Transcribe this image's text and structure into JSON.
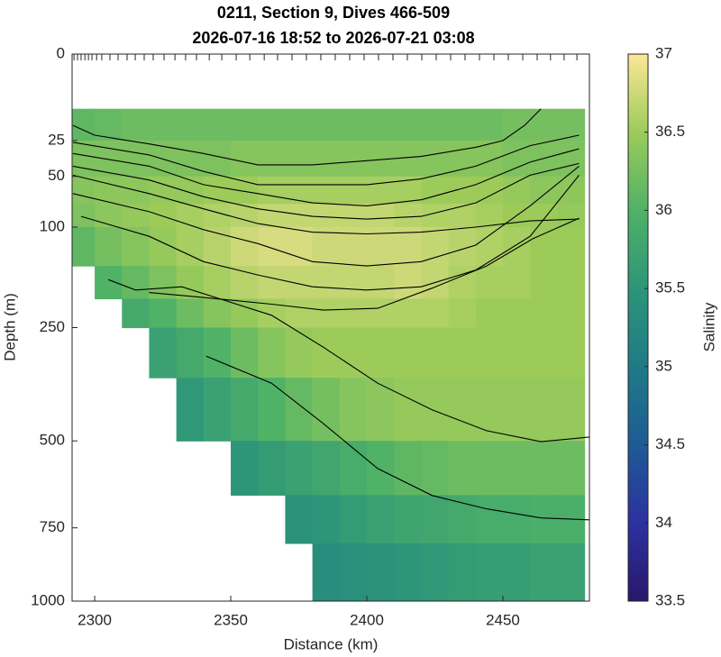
{
  "chart_data": {
    "type": "contour",
    "title": "0211, Section 9, Dives 466-509",
    "subtitle": "2026-07-16 18:52 to 2026-07-21 03:08",
    "x_label": "Distance (km)",
    "y_label": "Depth (m)",
    "colorbar_label": "Salinity",
    "xlim": [
      2291.7,
      2481.8
    ],
    "xticks": [
      2300,
      2350,
      2400,
      2450
    ],
    "ylim": [
      0,
      1000
    ],
    "yticks": [
      0,
      25,
      50,
      100,
      250,
      500,
      750,
      1000
    ],
    "yscale": "sqrt",
    "y_inverted": true,
    "clim": [
      33.5,
      37
    ],
    "cticks": [
      33.5,
      34,
      34.5,
      35,
      35.5,
      36,
      36.5,
      37
    ],
    "colormap": [
      "#29186b",
      "#2c31a0",
      "#1d5b94",
      "#1e7b86",
      "#2d9579",
      "#4fb267",
      "#9dcb5a",
      "#fce797"
    ],
    "dive_ticks_x": [
      2292.4,
      2293.7,
      2295,
      2296.4,
      2297.7,
      2299,
      2300.7,
      2302.6,
      2305.6,
      2308.6,
      2311.9,
      2314.9,
      2318.2,
      2321.5,
      2325.5,
      2329.5,
      2333.4,
      2337.4,
      2342.1,
      2346.7,
      2352,
      2357,
      2362.3,
      2367.2,
      2372.5,
      2377.8,
      2383.1,
      2388.4,
      2393.7,
      2399,
      2404.3,
      2409.6,
      2414.9,
      2420.2,
      2425.5,
      2430.8,
      2436.1,
      2441.4,
      2446.7,
      2452,
      2457.3,
      2462.6,
      2467.5,
      2472.5,
      2477.2
    ],
    "x_edges": [
      2290,
      2300,
      2310,
      2320,
      2330,
      2340,
      2350,
      2360,
      2370,
      2380,
      2390,
      2400,
      2410,
      2420,
      2430,
      2440,
      2450,
      2460,
      2470,
      2480
    ],
    "depth_edges": [
      10,
      25,
      50,
      75,
      100,
      150,
      200,
      250,
      350,
      500,
      650,
      800,
      1000
    ],
    "values": [
      [
        36.1,
        36.15,
        36.2,
        36.2,
        36.2,
        36.2,
        36.2,
        36.2,
        36.2,
        36.2,
        36.2,
        36.2,
        36.2,
        36.2,
        36.2,
        36.2,
        36.25,
        36.25,
        36.25
      ],
      [
        36.3,
        36.3,
        36.3,
        36.3,
        36.3,
        36.3,
        36.35,
        36.35,
        36.35,
        36.35,
        36.35,
        36.35,
        36.35,
        36.35,
        36.35,
        36.35,
        36.3,
        36.3,
        36.3
      ],
      [
        36.35,
        36.4,
        36.4,
        36.45,
        36.45,
        36.5,
        36.5,
        36.55,
        36.55,
        36.55,
        36.55,
        36.55,
        36.55,
        36.5,
        36.5,
        36.5,
        36.45,
        36.4,
        36.4
      ],
      [
        36.3,
        36.4,
        36.45,
        36.5,
        36.55,
        36.6,
        36.65,
        36.7,
        36.7,
        36.7,
        36.7,
        36.7,
        36.65,
        36.6,
        36.6,
        36.55,
        36.5,
        36.5,
        36.45
      ],
      [
        36.1,
        36.25,
        36.35,
        36.45,
        36.55,
        36.65,
        36.75,
        36.8,
        36.8,
        36.75,
        36.75,
        36.75,
        36.75,
        36.7,
        36.65,
        36.6,
        36.55,
        36.5,
        36.5
      ],
      [
        null,
        36.0,
        36.15,
        36.3,
        36.45,
        36.55,
        36.65,
        36.7,
        36.7,
        36.7,
        36.7,
        36.7,
        36.75,
        36.7,
        36.6,
        36.55,
        36.55,
        36.5,
        36.5
      ],
      [
        null,
        null,
        35.85,
        36.0,
        36.2,
        36.35,
        36.45,
        36.55,
        36.6,
        36.6,
        36.6,
        36.6,
        36.6,
        36.6,
        36.55,
        36.5,
        36.5,
        36.5,
        36.5
      ],
      [
        null,
        null,
        null,
        35.7,
        35.85,
        36.0,
        36.2,
        36.35,
        36.45,
        36.5,
        36.5,
        36.5,
        36.5,
        36.5,
        36.5,
        36.5,
        36.5,
        36.5,
        36.5
      ],
      [
        null,
        null,
        null,
        null,
        35.55,
        35.7,
        35.85,
        36.0,
        36.15,
        36.25,
        36.35,
        36.4,
        36.45,
        36.45,
        36.45,
        36.45,
        36.45,
        36.45,
        36.45
      ],
      [
        null,
        null,
        null,
        null,
        null,
        null,
        35.5,
        35.6,
        35.7,
        35.8,
        35.9,
        36.0,
        36.1,
        36.15,
        36.2,
        36.2,
        36.2,
        36.2,
        36.2
      ],
      [
        null,
        null,
        null,
        null,
        null,
        null,
        null,
        null,
        35.45,
        35.5,
        35.6,
        35.7,
        35.75,
        35.8,
        35.85,
        35.9,
        35.9,
        35.95,
        35.95
      ],
      [
        null,
        null,
        null,
        null,
        null,
        null,
        null,
        null,
        null,
        35.35,
        35.4,
        35.45,
        35.5,
        35.55,
        35.6,
        35.65,
        35.65,
        35.7,
        35.7
      ]
    ],
    "contour_color": "#000000",
    "contours": [
      {
        "x": [
          2292,
          2300,
          2320,
          2340,
          2360,
          2380,
          2400,
          2420,
          2440,
          2450,
          2458,
          2464
        ],
        "depth": [
          17,
          22,
          27,
          33,
          41,
          41,
          38,
          35,
          29,
          25,
          17,
          10
        ]
      },
      {
        "x": [
          2292,
          2320,
          2340,
          2360,
          2380,
          2400,
          2420,
          2440,
          2460,
          2478
        ],
        "depth": [
          26,
          34,
          46,
          57,
          57,
          57,
          52,
          42,
          28,
          22
        ]
      },
      {
        "x": [
          2292,
          2320,
          2340,
          2360,
          2380,
          2400,
          2420,
          2440,
          2460,
          2478
        ],
        "depth": [
          33,
          42,
          57,
          65,
          74,
          77,
          71,
          57,
          39,
          30
        ]
      },
      {
        "x": [
          2292,
          2320,
          2340,
          2360,
          2380,
          2400,
          2420,
          2440,
          2460,
          2478
        ],
        "depth": [
          42,
          53,
          68,
          80,
          88,
          91,
          88,
          74,
          49,
          40
        ]
      },
      {
        "x": [
          2292,
          2320,
          2340,
          2360,
          2380,
          2400,
          2420,
          2440,
          2460,
          2478
        ],
        "depth": [
          49,
          65,
          80,
          96,
          106,
          108,
          106,
          100,
          93,
          91
        ]
      },
      {
        "x": [
          2292,
          2320,
          2340,
          2360,
          2380,
          2400,
          2420,
          2440,
          2460,
          2478
        ],
        "depth": [
          65,
          83,
          103,
          120,
          144,
          150,
          144,
          122,
          77,
          42
        ]
      },
      {
        "x": [
          2295,
          2320,
          2340,
          2360,
          2380,
          2400,
          2420,
          2440,
          2460,
          2478
        ],
        "depth": [
          88,
          111,
          144,
          163,
          181,
          186,
          181,
          156,
          111,
          49
        ]
      },
      {
        "x": [
          2320,
          2340,
          2365,
          2384,
          2404,
          2424,
          2444,
          2461,
          2478
        ],
        "depth": [
          190,
          198,
          209,
          219,
          216,
          183,
          150,
          114,
          90
        ]
      },
      {
        "x": [
          2305,
          2315,
          2332,
          2365,
          2384,
          2404,
          2424,
          2444,
          2464,
          2482
        ],
        "depth": [
          170,
          186,
          181,
          228,
          287,
          362,
          423,
          474,
          502,
          490
        ]
      },
      {
        "x": [
          2341,
          2365,
          2384,
          2404,
          2424,
          2444,
          2464,
          2482
        ],
        "depth": [
          305,
          362,
          456,
          574,
          651,
          691,
          719,
          725
        ]
      }
    ]
  }
}
